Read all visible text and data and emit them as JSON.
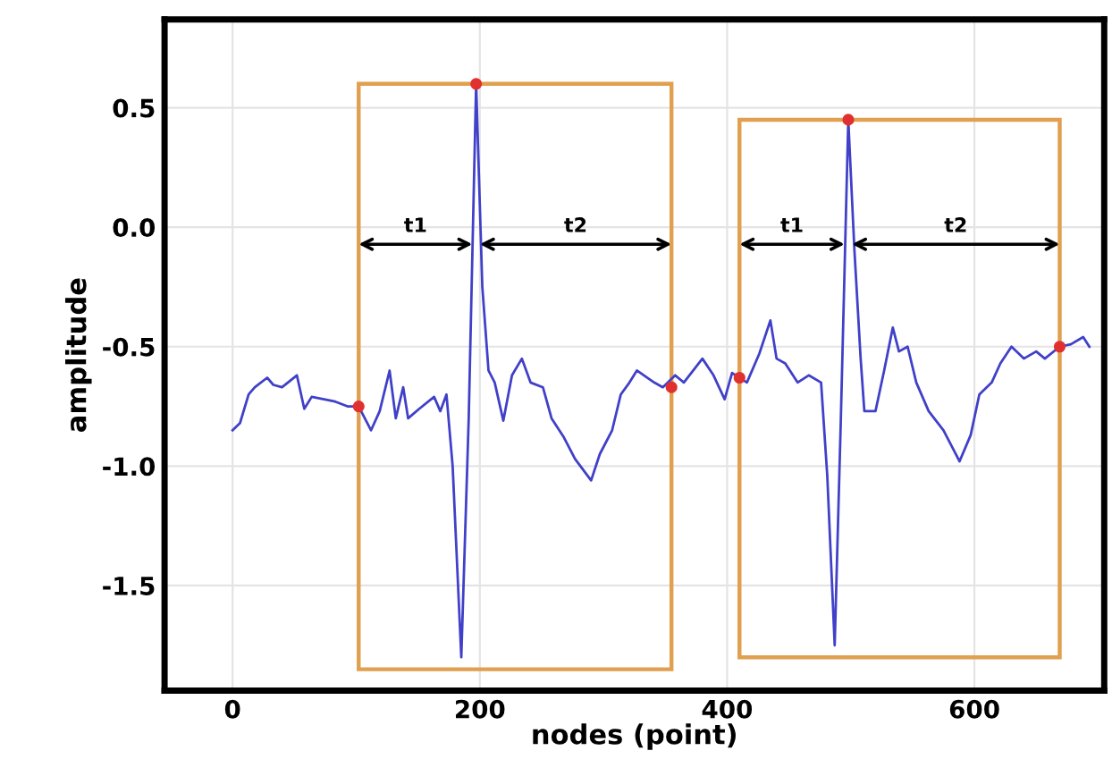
{
  "chart_data": {
    "type": "line",
    "xlabel": "nodes (point)",
    "ylabel": "amplitude",
    "xlim": [
      -55,
      705
    ],
    "ylim": [
      -1.94,
      0.87
    ],
    "xticks": [
      0,
      200,
      400,
      600
    ],
    "yticks": [
      0.5,
      {
        "value": 0,
        "label": "0.0"
      },
      -0.5,
      {
        "value": -1,
        "label": "-1.0"
      },
      -1.5
    ],
    "grid": true,
    "series": [
      {
        "color": "#4040c8",
        "x": [
          0,
          6,
          13,
          18,
          28,
          33,
          40,
          52,
          58,
          64,
          74,
          83,
          93,
          102,
          112,
          119,
          127,
          132,
          138,
          142,
          151,
          163,
          168,
          173,
          178,
          185,
          191,
          197,
          202,
          207,
          212,
          219,
          226,
          234,
          241,
          251,
          258,
          268,
          277,
          290,
          297,
          307,
          314,
          321,
          327,
          341,
          348,
          358,
          365,
          380,
          389,
          398,
          404,
          416,
          426,
          435,
          440,
          447,
          457,
          466,
          476,
          481,
          487,
          492,
          498,
          503,
          508,
          511,
          520,
          527,
          534,
          539,
          546,
          553,
          563,
          575,
          588,
          597,
          604,
          614,
          621,
          630,
          640,
          650,
          657,
          669,
          678,
          688,
          693
        ],
        "values": [
          -0.85,
          -0.82,
          -0.7,
          -0.67,
          -0.63,
          -0.66,
          -0.67,
          -0.62,
          -0.76,
          -0.71,
          -0.72,
          -0.73,
          -0.75,
          -0.75,
          -0.85,
          -0.77,
          -0.6,
          -0.8,
          -0.67,
          -0.8,
          -0.76,
          -0.71,
          -0.77,
          -0.7,
          -1.0,
          -1.8,
          -0.8,
          0.6,
          -0.25,
          -0.6,
          -0.65,
          -0.81,
          -0.62,
          -0.55,
          -0.65,
          -0.67,
          -0.8,
          -0.88,
          -0.97,
          -1.06,
          -0.95,
          -0.85,
          -0.7,
          -0.65,
          -0.6,
          -0.65,
          -0.67,
          -0.62,
          -0.65,
          -0.55,
          -0.62,
          -0.72,
          -0.61,
          -0.65,
          -0.53,
          -0.39,
          -0.55,
          -0.57,
          -0.65,
          -0.62,
          -0.65,
          -1.04,
          -1.75,
          -0.8,
          0.45,
          -0.1,
          -0.55,
          -0.77,
          -0.77,
          -0.6,
          -0.42,
          -0.52,
          -0.5,
          -0.65,
          -0.77,
          -0.85,
          -0.98,
          -0.87,
          -0.7,
          -0.65,
          -0.57,
          -0.5,
          -0.55,
          -0.52,
          -0.55,
          -0.5,
          -0.49,
          -0.46,
          -0.5
        ]
      },
      {
        "type": "scatter",
        "color": "#e03030",
        "marker": "circle",
        "x": [
          102,
          197,
          355,
          410,
          498,
          669
        ],
        "values": [
          -0.75,
          0.6,
          -0.67,
          -0.63,
          0.45,
          -0.5
        ]
      }
    ],
    "annotations": [
      "t1",
      "t2",
      "t1",
      "t2"
    ]
  }
}
